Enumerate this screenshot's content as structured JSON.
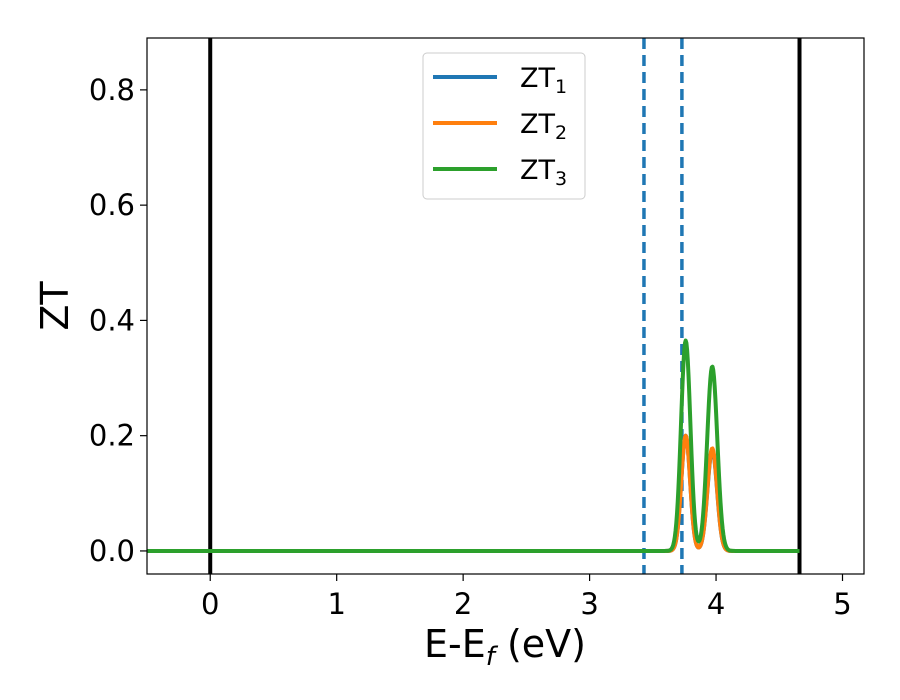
{
  "chart_data": {
    "type": "line",
    "xlabel": "E-E",
    "xlabel_sub": "f",
    "xlabel_unit": " (eV)",
    "ylabel": "ZT",
    "xlim": [
      -0.5,
      5.17
    ],
    "ylim": [
      -0.04,
      0.89
    ],
    "xticks": [
      0,
      1,
      2,
      3,
      4,
      5
    ],
    "xtick_labels": [
      "0",
      "1",
      "2",
      "3",
      "4",
      "5"
    ],
    "yticks": [
      0.0,
      0.2,
      0.4,
      0.6,
      0.8
    ],
    "ytick_labels": [
      "0.0",
      "0.2",
      "0.4",
      "0.6",
      "0.8"
    ],
    "grid": false,
    "legend_position": "top-center",
    "vertical_lines": [
      {
        "x": 0.0,
        "style": "solid",
        "color": "#000000"
      },
      {
        "x": 4.66,
        "style": "solid",
        "color": "#000000"
      },
      {
        "x": 3.43,
        "style": "dashed",
        "color": "#1f77b4"
      },
      {
        "x": 3.73,
        "style": "dashed",
        "color": "#1f77b4"
      }
    ],
    "series": [
      {
        "name": "ZT",
        "name_sub": "1",
        "color": "#1f77b4",
        "peaks": [
          {
            "x": 3.76,
            "height": 0.2,
            "width": 0.035
          },
          {
            "x": 3.97,
            "height": 0.175,
            "width": 0.038
          }
        ],
        "x_range": [
          -0.5,
          4.66
        ]
      },
      {
        "name": "ZT",
        "name_sub": "2",
        "color": "#ff7f0e",
        "peaks": [
          {
            "x": 3.76,
            "height": 0.2,
            "width": 0.035
          },
          {
            "x": 3.97,
            "height": 0.178,
            "width": 0.038
          }
        ],
        "x_range": [
          -0.5,
          4.66
        ]
      },
      {
        "name": "ZT",
        "name_sub": "3",
        "color": "#2ca02c",
        "peaks": [
          {
            "x": 3.76,
            "height": 0.365,
            "width": 0.037
          },
          {
            "x": 3.97,
            "height": 0.32,
            "width": 0.04
          }
        ],
        "x_range": [
          -0.5,
          4.66
        ]
      }
    ]
  }
}
